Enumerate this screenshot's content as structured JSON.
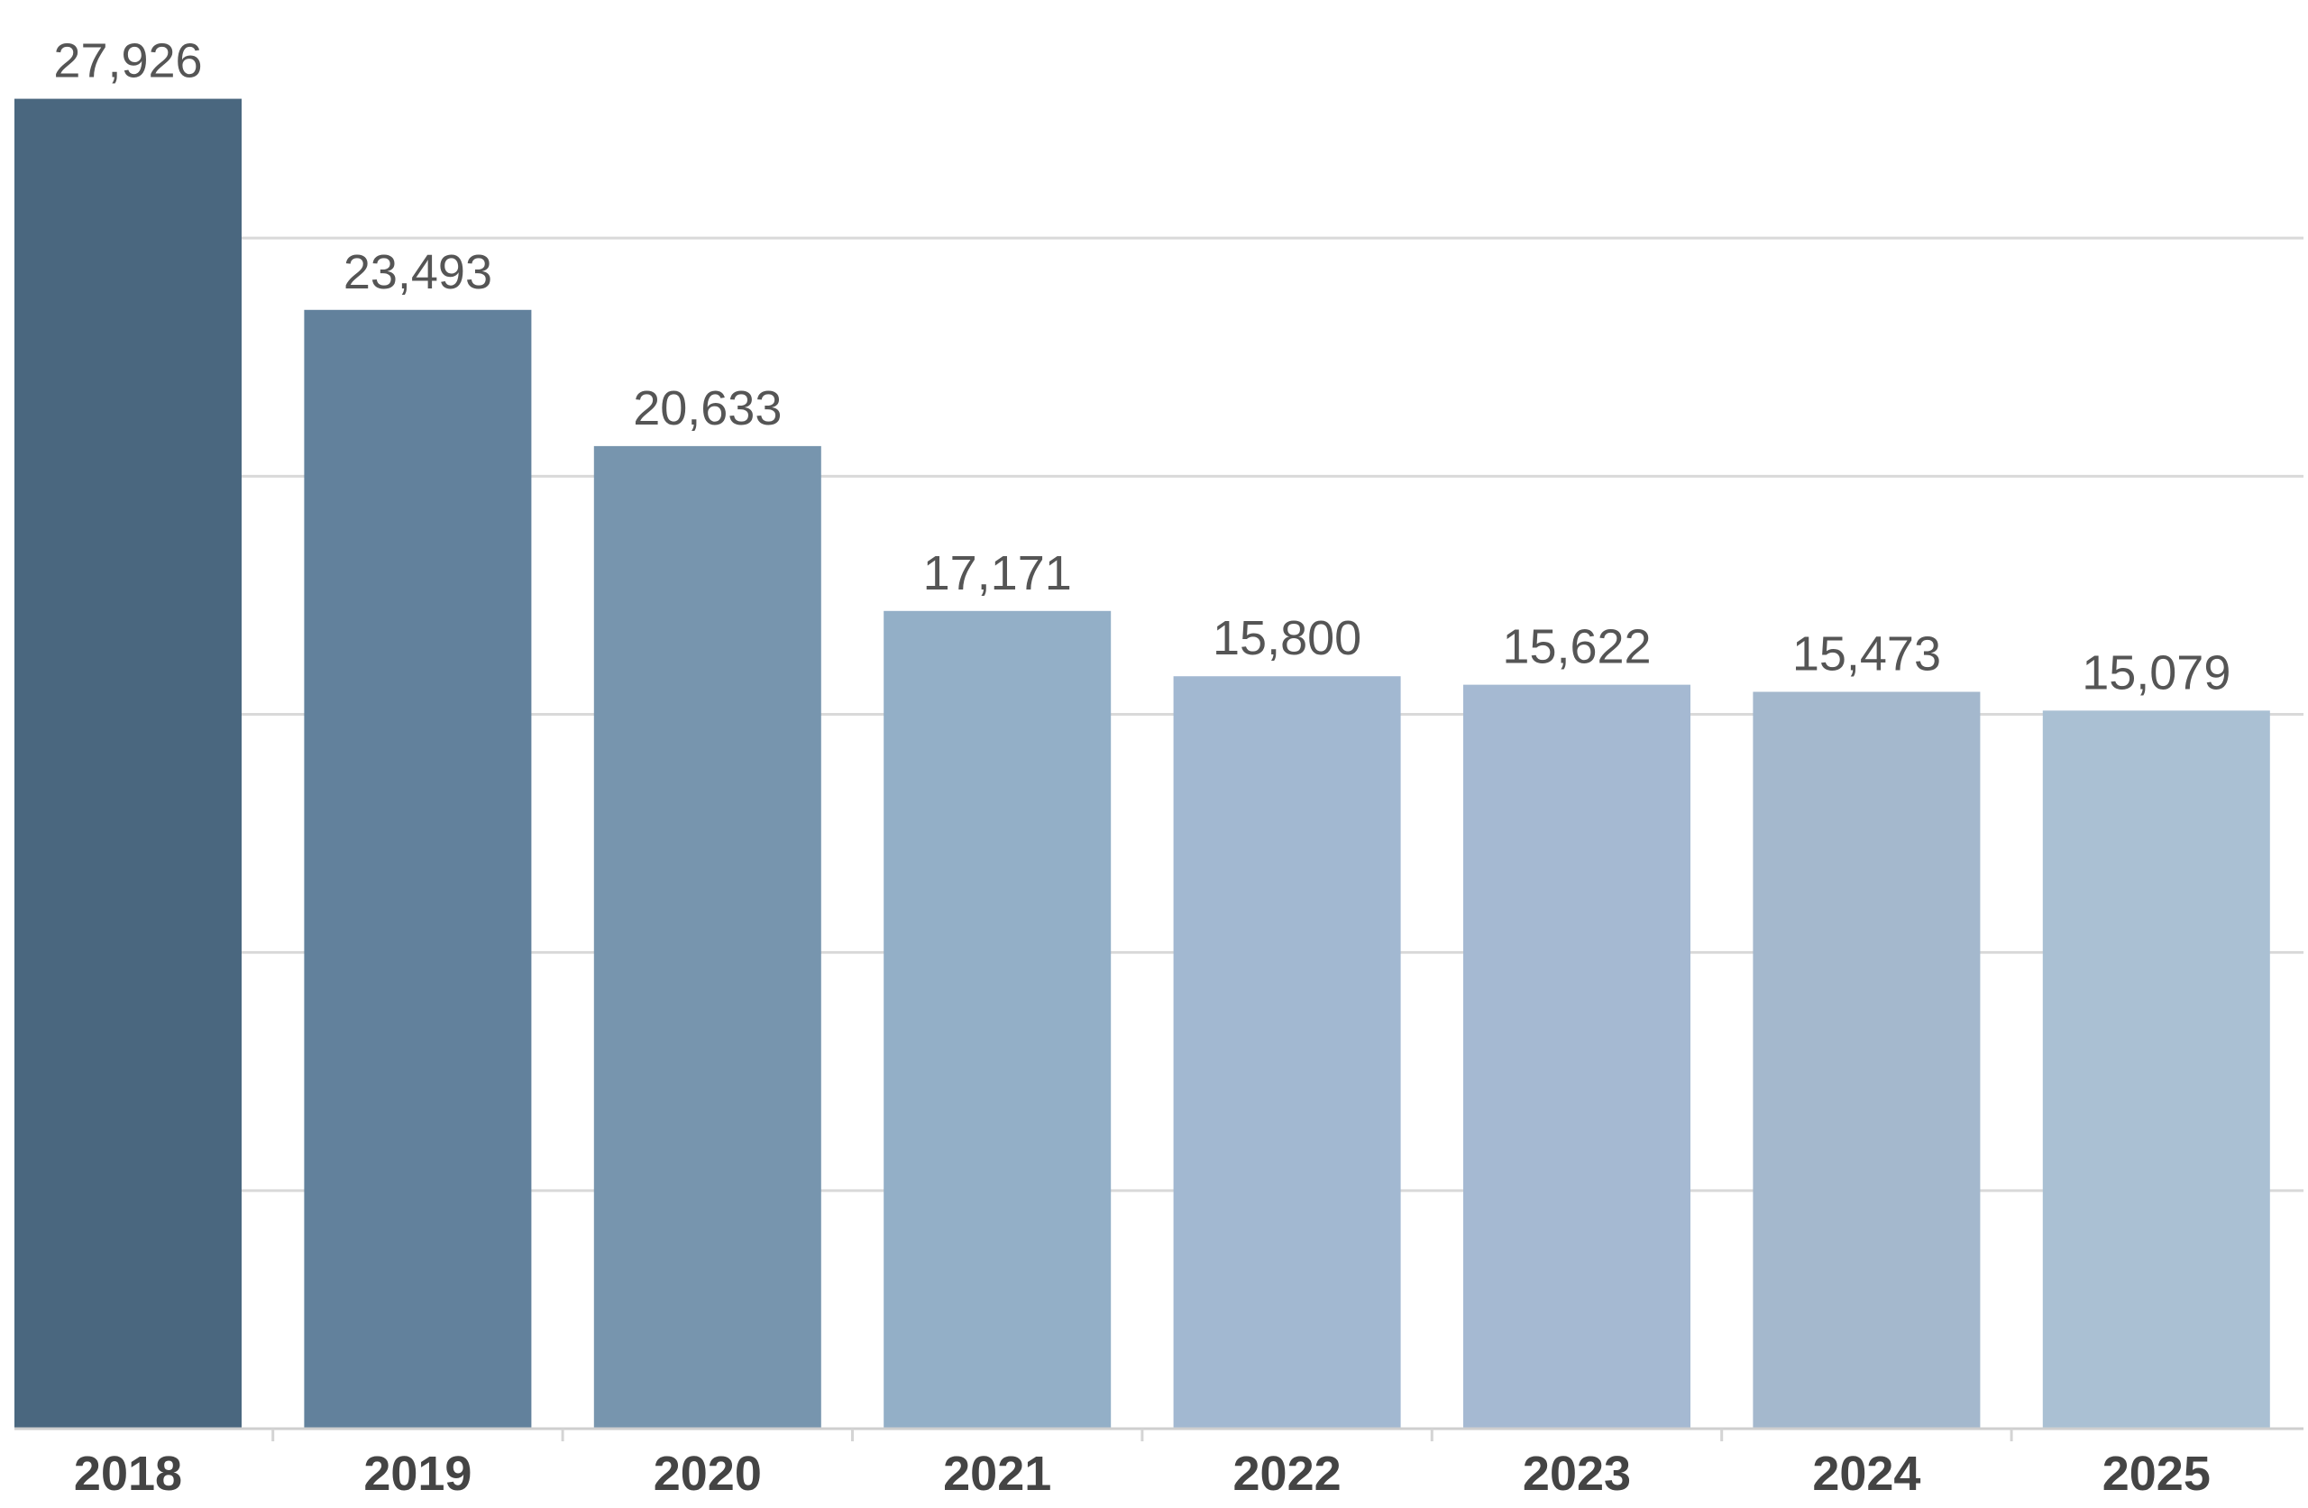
{
  "chart_data": {
    "type": "bar",
    "title": "",
    "xlabel": "",
    "ylabel": "",
    "categories": [
      "2018",
      "2019",
      "2020",
      "2021",
      "2022",
      "2023",
      "2024",
      "2025"
    ],
    "values": [
      27926,
      23493,
      20633,
      17171,
      15800,
      15622,
      15473,
      15079
    ],
    "value_labels": [
      "27,926",
      "23,493",
      "20,633",
      "17,171",
      "15,800",
      "15,622",
      "15,473",
      "15,079"
    ],
    "ylim": [
      0,
      30000
    ],
    "gridlines": [
      5000,
      10000,
      15000,
      20000,
      25000
    ],
    "grid": true,
    "legend": "none",
    "bar_colors": [
      "#4a677f",
      "#62819c",
      "#7795ae",
      "#93afc7",
      "#a2b8d1",
      "#a5b9d2",
      "#a4b8cd",
      "#aac0d3"
    ]
  }
}
